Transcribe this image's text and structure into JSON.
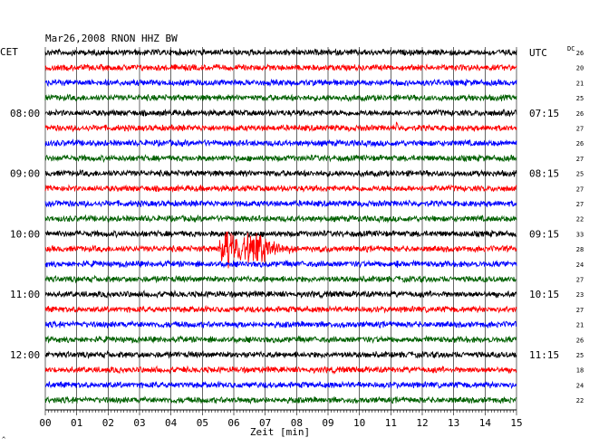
{
  "chart_data": {
    "type": "line",
    "title": "Mar26,2008   RNON HHZ BW",
    "left_timezone": "CET",
    "right_timezone": "UTC",
    "dc_header": "DC",
    "xlabel": "Zeit [min]",
    "x_ticks": [
      "00",
      "01",
      "02",
      "03",
      "04",
      "05",
      "06",
      "07",
      "08",
      "09",
      "10",
      "11",
      "12",
      "13",
      "14",
      "15"
    ],
    "xlim": [
      0,
      15
    ],
    "trace_colors": [
      "#000000",
      "#ff0000",
      "#0000ff",
      "#006000"
    ],
    "left_hour_labels": [
      {
        "trace": 4,
        "label": "08:00"
      },
      {
        "trace": 8,
        "label": "09:00"
      },
      {
        "trace": 12,
        "label": "10:00"
      },
      {
        "trace": 16,
        "label": "11:00"
      },
      {
        "trace": 20,
        "label": "12:00"
      }
    ],
    "right_hour_labels": [
      {
        "trace": 0,
        "label": "UTC"
      },
      {
        "trace": 4,
        "label": "07:15"
      },
      {
        "trace": 8,
        "label": "08:15"
      },
      {
        "trace": 12,
        "label": "09:15"
      },
      {
        "trace": 16,
        "label": "10:15"
      },
      {
        "trace": 20,
        "label": "11:15"
      }
    ],
    "dc_values": [
      "26",
      "20",
      "21",
      "25",
      "26",
      "27",
      "26",
      "27",
      "25",
      "27",
      "27",
      "22",
      "33",
      "28",
      "24",
      "27",
      "23",
      "27",
      "21",
      "26",
      "25",
      "18",
      "24",
      "22"
    ],
    "event": {
      "trace": 13,
      "start_min": 5.5,
      "peak_min": 6.7,
      "end_min": 9.5,
      "color": "#ff0000"
    },
    "small_spikes": [
      {
        "trace": 5,
        "min": 11.2
      },
      {
        "trace": 14,
        "min": 11.2
      }
    ],
    "footer_mark": "^"
  }
}
